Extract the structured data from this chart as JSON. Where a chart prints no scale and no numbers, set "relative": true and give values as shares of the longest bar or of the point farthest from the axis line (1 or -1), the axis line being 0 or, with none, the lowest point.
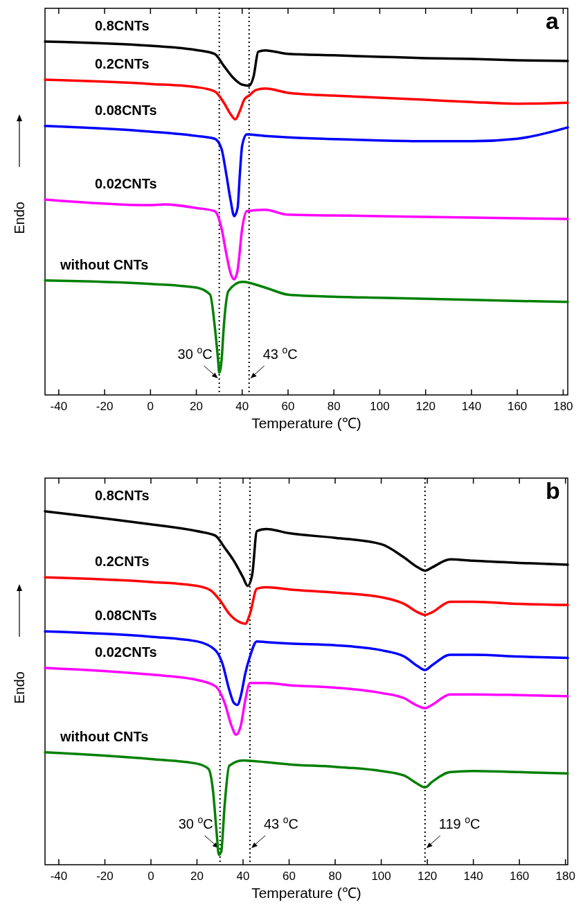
{
  "chart_data": [
    {
      "type": "line",
      "relative": true,
      "xlabel": "Temperature (℃)",
      "ylabel": "Endo",
      "annotations": [
        "a"
      ],
      "xlim": [
        -46,
        182
      ],
      "xticks": [
        -40,
        -20,
        0,
        20,
        40,
        60,
        80,
        100,
        120,
        140,
        160,
        180
      ],
      "line_style": "solid",
      "marker": "none",
      "legend": "left",
      "ref_lines": [
        {
          "axis": "x",
          "value": 30,
          "label": "30 $^{o}$C",
          "line_style": "dotted"
        },
        {
          "axis": "x",
          "value": 43,
          "label": "43 $^{o}$C",
          "line_style": "dotted"
        }
      ],
      "series": [
        {
          "name": "0.8CNTs",
          "color": "#000000",
          "x": [
            -46,
            0,
            20,
            28,
            32,
            36,
            40,
            43,
            45,
            47,
            50,
            60,
            80,
            100,
            120,
            140,
            160,
            182
          ],
          "values": [
            1.0,
            0.988,
            0.976,
            0.965,
            0.931,
            0.898,
            0.878,
            0.875,
            0.902,
            0.971,
            0.975,
            0.965,
            0.961,
            0.957,
            0.953,
            0.951,
            0.947,
            0.945
          ]
        },
        {
          "name": "0.2CNTs",
          "color": "#ff0000",
          "x": [
            -46,
            0,
            20,
            28,
            32,
            35,
            37,
            39,
            41,
            43,
            46,
            50,
            60,
            80,
            100,
            120,
            140,
            160,
            182
          ],
          "values": [
            0.892,
            0.88,
            0.871,
            0.859,
            0.827,
            0.794,
            0.78,
            0.804,
            0.837,
            0.847,
            0.863,
            0.867,
            0.855,
            0.847,
            0.841,
            0.835,
            0.829,
            0.824,
            0.827
          ]
        },
        {
          "name": "0.08CNTs",
          "color": "#0000ff",
          "x": [
            -46,
            0,
            20,
            28,
            31,
            33,
            35,
            36.5,
            38,
            39,
            40,
            42,
            50,
            60,
            80,
            100,
            120,
            140,
            160,
            182
          ],
          "values": [
            0.761,
            0.745,
            0.733,
            0.725,
            0.696,
            0.627,
            0.549,
            0.506,
            0.529,
            0.627,
            0.706,
            0.737,
            0.733,
            0.729,
            0.724,
            0.72,
            0.718,
            0.718,
            0.725,
            0.757
          ]
        },
        {
          "name": "0.02CNTs",
          "color": "#ff00ff",
          "x": [
            -46,
            0,
            6,
            20,
            28,
            31,
            33,
            35,
            36.5,
            38,
            40,
            42,
            50,
            60,
            80,
            100,
            140,
            182
          ],
          "values": [
            0.553,
            0.537,
            0.539,
            0.529,
            0.52,
            0.471,
            0.402,
            0.343,
            0.327,
            0.353,
            0.471,
            0.52,
            0.524,
            0.51,
            0.508,
            0.506,
            0.502,
            0.498
          ]
        },
        {
          "name": "without CNTs",
          "color": "#008000",
          "x": [
            -46,
            0,
            20,
            26,
            28,
            29.5,
            30,
            31,
            32,
            34,
            40,
            50,
            60,
            80,
            100,
            140,
            182
          ],
          "values": [
            0.324,
            0.314,
            0.304,
            0.284,
            0.196,
            0.098,
            0.063,
            0.098,
            0.196,
            0.294,
            0.32,
            0.304,
            0.284,
            0.278,
            0.275,
            0.269,
            0.263
          ]
        }
      ]
    },
    {
      "type": "line",
      "relative": true,
      "xlabel": "Temperature (℃)",
      "ylabel": "Endo",
      "annotations": [
        "b"
      ],
      "xlim": [
        -46,
        181
      ],
      "xticks": [
        -40,
        -20,
        0,
        20,
        40,
        60,
        80,
        100,
        120,
        140,
        160,
        180
      ],
      "line_style": "solid",
      "marker": "none",
      "legend": "left",
      "ref_lines": [
        {
          "axis": "x",
          "value": 30,
          "label": "30 $^{o}$C",
          "line_style": "dotted"
        },
        {
          "axis": "x",
          "value": 43,
          "label": "43 $^{o}$C",
          "line_style": "dotted"
        },
        {
          "axis": "x",
          "value": 119,
          "label": "119 $^{o}$C",
          "line_style": "dotted"
        }
      ],
      "series": [
        {
          "name": "0.8CNTs",
          "color": "#000000",
          "x": [
            -46,
            0,
            20,
            28,
            32,
            36,
            40,
            42,
            44,
            46,
            50,
            60,
            80,
            100,
            110,
            116,
            119,
            122,
            130,
            140,
            160,
            181
          ],
          "values": [
            1.0,
            0.963,
            0.944,
            0.931,
            0.897,
            0.86,
            0.813,
            0.789,
            0.822,
            0.944,
            0.95,
            0.938,
            0.925,
            0.907,
            0.869,
            0.841,
            0.832,
            0.841,
            0.864,
            0.86,
            0.854,
            0.849
          ]
        },
        {
          "name": "0.2CNTs",
          "color": "#ff0000",
          "x": [
            -46,
            0,
            20,
            26,
            30,
            34,
            38,
            41,
            43,
            46,
            50,
            60,
            80,
            100,
            110,
            116,
            119,
            122,
            130,
            140,
            160,
            181
          ],
          "values": [
            0.813,
            0.8,
            0.789,
            0.776,
            0.748,
            0.71,
            0.688,
            0.682,
            0.71,
            0.781,
            0.785,
            0.779,
            0.77,
            0.757,
            0.738,
            0.714,
            0.707,
            0.714,
            0.744,
            0.744,
            0.738,
            0.735
          ]
        },
        {
          "name": "0.08CNTs",
          "color": "#0000ff",
          "x": [
            -46,
            0,
            20,
            28,
            31,
            34,
            36,
            37.5,
            39,
            41,
            43,
            46,
            50,
            60,
            80,
            100,
            110,
            116,
            119,
            122,
            130,
            140,
            160,
            181
          ],
          "values": [
            0.66,
            0.645,
            0.632,
            0.607,
            0.57,
            0.495,
            0.458,
            0.452,
            0.477,
            0.542,
            0.589,
            0.632,
            0.63,
            0.626,
            0.621,
            0.607,
            0.589,
            0.561,
            0.551,
            0.564,
            0.594,
            0.594,
            0.589,
            0.585
          ]
        },
        {
          "name": "0.02CNTs",
          "color": "#ff00ff",
          "x": [
            -46,
            0,
            20,
            28,
            32,
            35,
            37,
            39,
            41,
            43,
            50,
            60,
            80,
            100,
            110,
            116,
            119,
            122,
            130,
            140,
            160,
            181
          ],
          "values": [
            0.557,
            0.538,
            0.523,
            0.505,
            0.458,
            0.393,
            0.368,
            0.393,
            0.467,
            0.514,
            0.514,
            0.508,
            0.501,
            0.486,
            0.471,
            0.449,
            0.443,
            0.452,
            0.482,
            0.482,
            0.48,
            0.477
          ]
        },
        {
          "name": "without CNTs",
          "color": "#008000",
          "x": [
            -46,
            0,
            20,
            25,
            27,
            28.5,
            29.5,
            30.5,
            32,
            34,
            40,
            50,
            60,
            80,
            100,
            110,
            116,
            119,
            122,
            130,
            140,
            160,
            181
          ],
          "values": [
            0.318,
            0.299,
            0.286,
            0.271,
            0.206,
            0.093,
            0.028,
            0.037,
            0.168,
            0.28,
            0.295,
            0.29,
            0.284,
            0.277,
            0.265,
            0.252,
            0.228,
            0.219,
            0.234,
            0.262,
            0.265,
            0.262,
            0.258
          ]
        }
      ]
    }
  ]
}
